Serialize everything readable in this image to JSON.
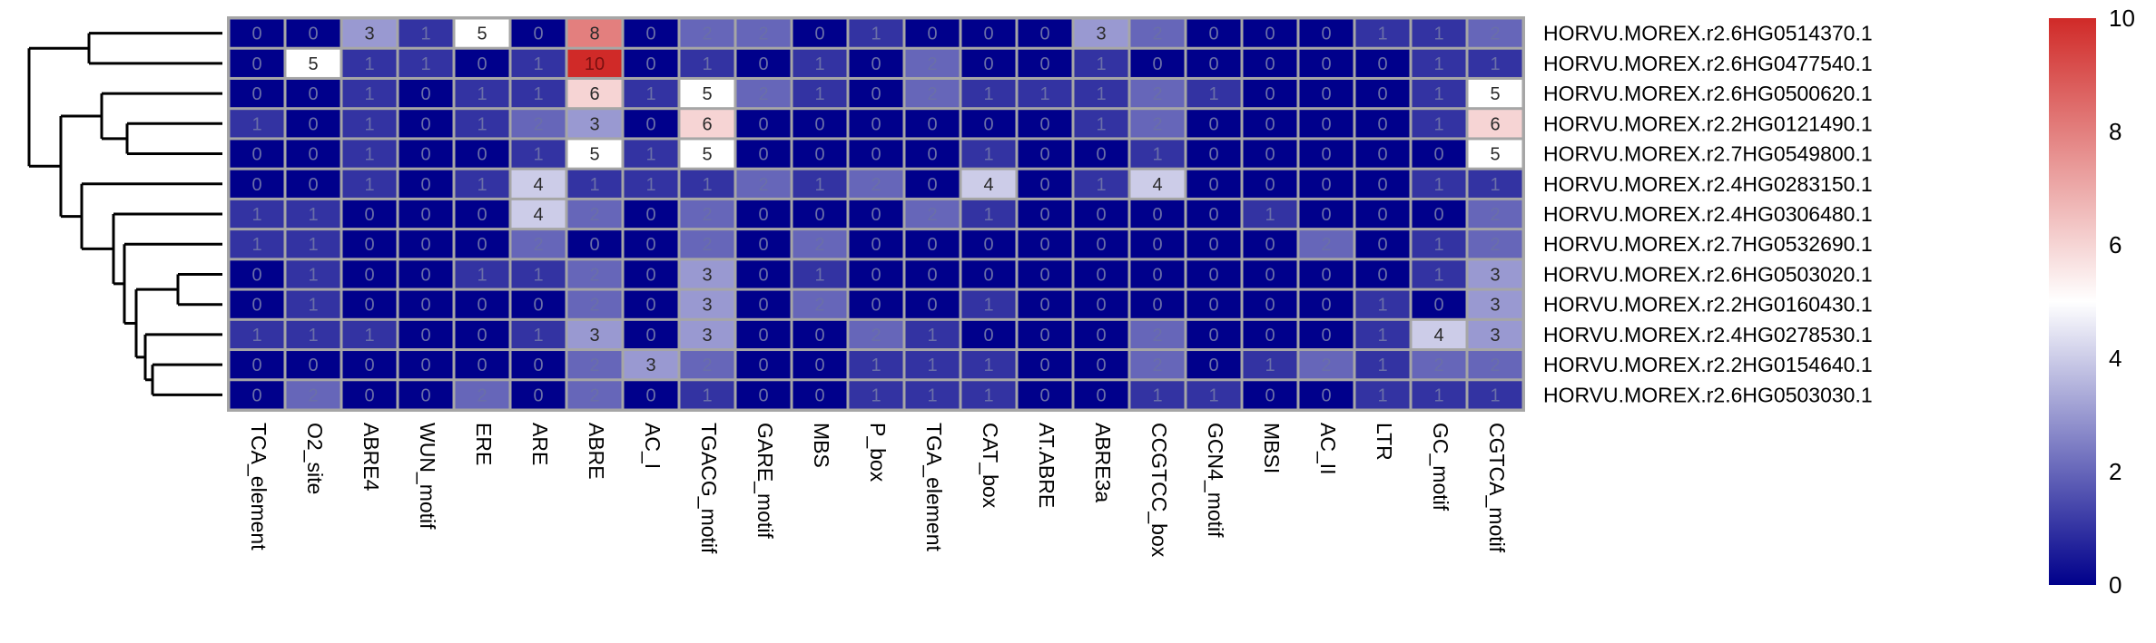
{
  "chart_data": {
    "type": "heatmap",
    "title": "",
    "xlabel": "",
    "ylabel": "",
    "columns": [
      "TCA_element",
      "O2_site",
      "ABRE4",
      "WUN_motif",
      "ERE",
      "ARE",
      "ABRE",
      "AC_I",
      "TGACG_motif",
      "GARE_motif",
      "MBS",
      "P_box",
      "TGA_element",
      "CAT_box",
      "AT.ABRE",
      "ABRE3a",
      "CCGTCC_box",
      "GCN4_motif",
      "MBSI",
      "AC_II",
      "LTR",
      "GC_motif",
      "CGTCA_motif"
    ],
    "rows": [
      "HORVU.MOREX.r2.6HG0514370.1",
      "HORVU.MOREX.r2.6HG0477540.1",
      "HORVU.MOREX.r2.6HG0500620.1",
      "HORVU.MOREX.r2.2HG0121490.1",
      "HORVU.MOREX.r2.7HG0549800.1",
      "HORVU.MOREX.r2.4HG0283150.1",
      "HORVU.MOREX.r2.4HG0306480.1",
      "HORVU.MOREX.r2.7HG0532690.1",
      "HORVU.MOREX.r2.6HG0503020.1",
      "HORVU.MOREX.r2.2HG0160430.1",
      "HORVU.MOREX.r2.4HG0278530.1",
      "HORVU.MOREX.r2.2HG0154640.1",
      "HORVU.MOREX.r2.6HG0503030.1"
    ],
    "values": [
      [
        0,
        0,
        3,
        1,
        5,
        0,
        8,
        0,
        2,
        2,
        0,
        1,
        0,
        0,
        0,
        3,
        2,
        0,
        0,
        0,
        1,
        1,
        2
      ],
      [
        0,
        5,
        1,
        1,
        0,
        1,
        10,
        0,
        1,
        0,
        1,
        0,
        2,
        0,
        0,
        1,
        0,
        0,
        0,
        0,
        0,
        1,
        1
      ],
      [
        0,
        0,
        1,
        0,
        1,
        1,
        6,
        1,
        5,
        2,
        1,
        0,
        2,
        1,
        1,
        1,
        2,
        1,
        0,
        0,
        0,
        1,
        5
      ],
      [
        1,
        0,
        1,
        0,
        1,
        2,
        3,
        0,
        6,
        0,
        0,
        0,
        0,
        0,
        0,
        1,
        2,
        0,
        0,
        0,
        0,
        1,
        6
      ],
      [
        0,
        0,
        1,
        0,
        0,
        1,
        5,
        1,
        5,
        0,
        0,
        0,
        0,
        1,
        0,
        0,
        1,
        0,
        0,
        0,
        0,
        0,
        5
      ],
      [
        0,
        0,
        1,
        0,
        1,
        4,
        1,
        1,
        1,
        2,
        1,
        2,
        0,
        4,
        0,
        1,
        4,
        0,
        0,
        0,
        0,
        1,
        1
      ],
      [
        1,
        1,
        0,
        0,
        0,
        4,
        2,
        0,
        2,
        0,
        0,
        0,
        2,
        1,
        0,
        0,
        0,
        0,
        1,
        0,
        0,
        0,
        2
      ],
      [
        1,
        1,
        0,
        0,
        0,
        2,
        0,
        0,
        2,
        0,
        2,
        0,
        0,
        0,
        0,
        0,
        0,
        0,
        0,
        2,
        0,
        1,
        2
      ],
      [
        0,
        1,
        0,
        0,
        1,
        1,
        2,
        0,
        3,
        0,
        1,
        0,
        0,
        0,
        0,
        0,
        0,
        0,
        0,
        0,
        0,
        1,
        3
      ],
      [
        0,
        1,
        0,
        0,
        0,
        0,
        2,
        0,
        3,
        0,
        2,
        0,
        0,
        1,
        0,
        0,
        0,
        0,
        0,
        0,
        1,
        0,
        3
      ],
      [
        1,
        1,
        1,
        0,
        0,
        1,
        3,
        0,
        3,
        0,
        0,
        2,
        1,
        0,
        0,
        0,
        2,
        0,
        0,
        0,
        1,
        4,
        3
      ],
      [
        0,
        0,
        0,
        0,
        0,
        0,
        2,
        3,
        2,
        0,
        0,
        1,
        1,
        1,
        0,
        0,
        2,
        0,
        1,
        2,
        1,
        2,
        2
      ],
      [
        0,
        2,
        0,
        0,
        2,
        0,
        2,
        0,
        1,
        0,
        0,
        1,
        1,
        1,
        0,
        0,
        1,
        1,
        0,
        0,
        1,
        1,
        1
      ]
    ],
    "colorbar": {
      "min": 0,
      "max": 10,
      "ticks": [
        "0",
        "2",
        "4",
        "6",
        "8",
        "10"
      ]
    },
    "colors": {
      "low": "#00008B",
      "mid": "#FFFFFF",
      "high": "#D02A28",
      "grid": "#A6A6A6",
      "dendrogram": "#000000"
    },
    "dendrogram_merge_order": "((1,2),((3,(4,5)),(6,(7,(8,((9,10),(11,(12,13))))))))"
  }
}
